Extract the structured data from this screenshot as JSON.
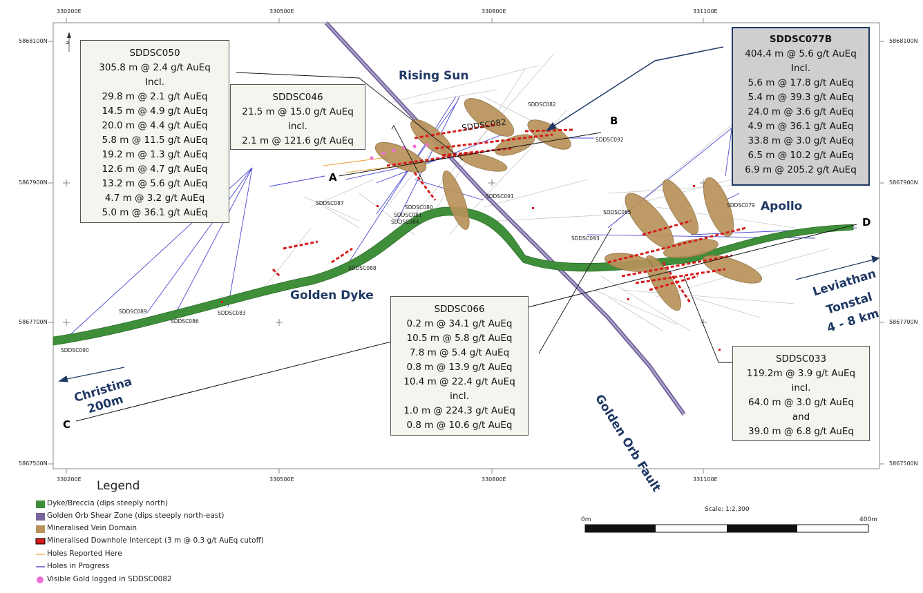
{
  "grid": {
    "easting_labels": [
      "330200E",
      "330500E",
      "330800E",
      "331100E"
    ],
    "northing_labels": [
      "5868100N",
      "5867900N",
      "5867700N",
      "5867500N"
    ]
  },
  "sections": {
    "A": "A",
    "B": "B",
    "C": "C",
    "D": "D"
  },
  "places": {
    "rising_sun": "Rising Sun",
    "apollo": "Apollo",
    "golden_dyke": "Golden Dyke",
    "golden_orb_fault": "Golden Orb Fault",
    "christina_1": "Christina",
    "christina_2": "200m",
    "leviathan_1": "Leviathan",
    "leviathan_2": "Tonstal",
    "leviathan_3": "4 - 8 km"
  },
  "holes": {
    "sddsc082": "SDDSC082",
    "sddsc092": "SDDSC092",
    "sddsc091": "SDDSC091",
    "sddsc087": "SDDSC087",
    "sddsc080": "SDDSC080",
    "sddsc081": "SDDSC081",
    "sddsc084": "SDDSC084",
    "sddsc088": "SDDSC088",
    "sddsc089": "SDDSC089",
    "sddsc086": "SDDSC086",
    "sddsc083": "SDDSC083",
    "sddsc090": "SDDSC090",
    "sddsc085": "SDDSC085",
    "sddsc079": "SDDSC079",
    "sddsc093": "SDDSC093",
    "sddsc082_big": "SDDSC082"
  },
  "annotations": {
    "sddsc050": [
      "SDDSC050",
      "305.8 m @ 2.4 g/t AuEq",
      "Incl.",
      "29.8 m @ 2.1 g/t AuEq",
      "14.5 m @ 4.9 g/t AuEq",
      "20.0 m @ 4.4 g/t AuEq",
      "5.8 m @ 11.5 g/t AuEq",
      "19.2 m @ 1.3 g/t AuEq",
      "12.6 m @ 4.7 g/t AuEq",
      "13.2 m @ 5.6 g/t AuEq",
      "4.7 m @ 3.2 g/t AuEq",
      "5.0 m @ 36.1 g/t AuEq"
    ],
    "sddsc046": [
      "SDDSC046",
      "21.5 m @ 15.0 g/t AuEq",
      "incl.",
      "2.1 m @ 121.6 g/t AuEq"
    ],
    "sddsc077b": [
      "SDDSC077B",
      "404.4 m @ 5.6 g/t AuEq",
      "Incl.",
      "5.6 m @ 17.8 g/t AuEq",
      "5.4 m @ 39.3 g/t AuEq",
      "24.0 m @ 3.6 g/t AuEq",
      "4.9 m @ 36.1 g/t AuEq",
      "33.8 m @ 3.0 g/t AuEq",
      "6.5 m @ 10.2 g/t AuEq",
      "6.9 m @ 205.2 g/t AuEq"
    ],
    "sddsc066": [
      "SDDSC066",
      "0.2 m @ 34.1 g/t AuEq",
      "10.5 m @ 5.8 g/t AuEq",
      "7.8 m @ 5.4 g/t AuEq",
      "0.8 m @ 13.9 g/t AuEq",
      "10.4 m @ 22.4 g/t AuEq",
      "incl.",
      "1.0 m @ 224.3 g/t AuEq",
      "0.8 m @ 10.6 g/t AuEq"
    ],
    "sddsc033": [
      "SDDSC033",
      "119.2m @ 3.9 g/t AuEq",
      "incl.",
      "64.0 m @ 3.0 g/t AuEq",
      "and",
      "39.0 m @ 6.8 g/t AuEq"
    ]
  },
  "legend": {
    "title": "Legend",
    "items": [
      {
        "label": "Dyke/Breccia (dips steeply north)",
        "color": "#3f8f3a"
      },
      {
        "label": "Golden Orb Shear Zone (dips steeply north-east)",
        "color": "#76659c"
      },
      {
        "label": "Mineralised Vein Domain",
        "color": "#b8925a"
      },
      {
        "label": "Mineralised Downhole Intercept (3 m @ 0.3 g/t AuEq cutoff)",
        "color": "#d71a1a"
      },
      {
        "label": "Holes Reported Here",
        "color": "#e8a23a"
      },
      {
        "label": "Holes in Progress",
        "color": "#3a3ac8"
      },
      {
        "label": "Visible Gold logged in SDDSC0082",
        "color": "#f06fd6"
      }
    ]
  },
  "scale": {
    "text": "Scale: 1:2,300",
    "start": "0m",
    "end": "400m"
  },
  "north_arrow": "N"
}
